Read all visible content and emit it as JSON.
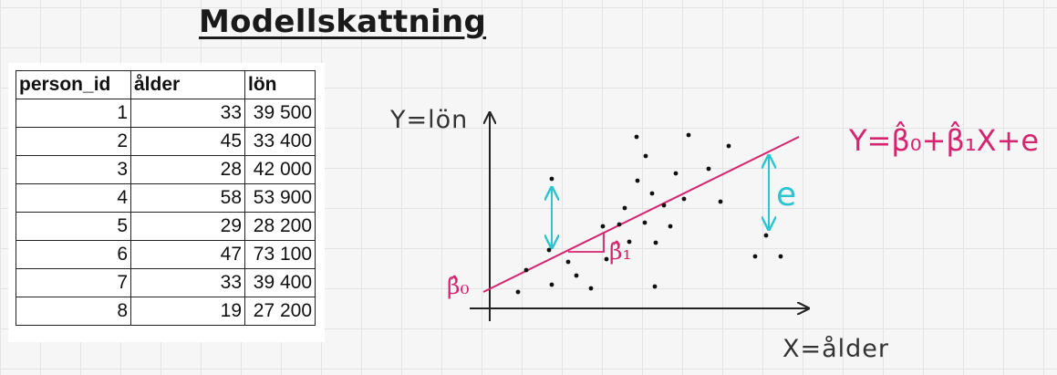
{
  "title": "Modellskattning",
  "table": {
    "headers": [
      "person_id",
      "ålder",
      "lön"
    ],
    "rows": [
      [
        "1",
        "33",
        "39 500"
      ],
      [
        "2",
        "45",
        "33 400"
      ],
      [
        "3",
        "28",
        "42 000"
      ],
      [
        "4",
        "58",
        "53 900"
      ],
      [
        "5",
        "29",
        "28 200"
      ],
      [
        "6",
        "47",
        "73 100"
      ],
      [
        "7",
        "33",
        "39 400"
      ],
      [
        "8",
        "19",
        "27 200"
      ]
    ]
  },
  "diagram": {
    "y_axis_label": "Y=lön",
    "x_axis_label": "X=ålder",
    "intercept_label": "β̂₀",
    "slope_label": "β̂₁",
    "residual_label": "e",
    "equation": "Y=β̂₀+β̂₁X+e",
    "colors": {
      "line": "#d6246e",
      "residual": "#2bc4cf",
      "ink": "#222222"
    }
  }
}
